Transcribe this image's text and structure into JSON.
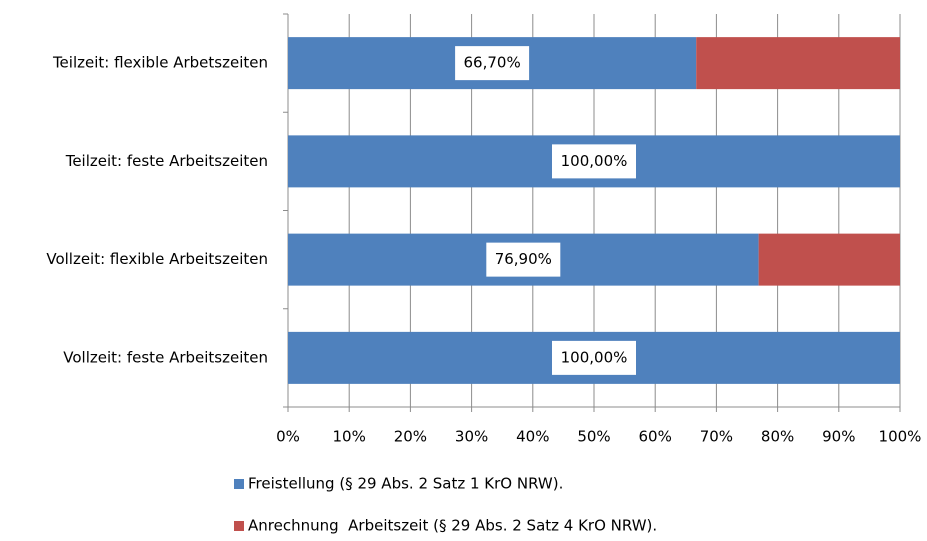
{
  "chart_data": {
    "type": "stacked_bar_horizontal",
    "categories": [
      "Teilzeit: flexible Arbetszeiten",
      "Teilzeit: feste Arbeitszeiten",
      "Vollzeit: flexible Arbeitszeiten",
      "Vollzeit: feste Arbeitszeiten"
    ],
    "series": [
      {
        "name": "Freistellung (§ 29 Abs. 2 Satz 1 KrO NRW).",
        "color": "#4f81bd",
        "values": [
          66.7,
          100,
          76.9,
          100
        ],
        "value_labels": [
          "66,70%",
          "100,00%",
          "76,90%",
          "100,00%"
        ]
      },
      {
        "name": "Anrechnung  Arbeitszeit (§ 29 Abs. 2 Satz 4 KrO NRW).",
        "color": "#c0504d",
        "values": [
          33.3,
          0,
          23.1,
          0
        ]
      }
    ],
    "xlim": [
      0,
      100
    ],
    "xticks": [
      {
        "value": 0,
        "label": "0%"
      },
      {
        "value": 10,
        "label": "10%"
      },
      {
        "value": 20,
        "label": "20%"
      },
      {
        "value": 30,
        "label": "30%"
      },
      {
        "value": 40,
        "label": "40%"
      },
      {
        "value": 50,
        "label": "50%"
      },
      {
        "value": 60,
        "label": "60%"
      },
      {
        "value": 70,
        "label": "70%"
      },
      {
        "value": 80,
        "label": "80%"
      },
      {
        "value": 90,
        "label": "90%"
      },
      {
        "value": 100,
        "label": "100%"
      }
    ],
    "grid": true,
    "legend": "bottom"
  }
}
